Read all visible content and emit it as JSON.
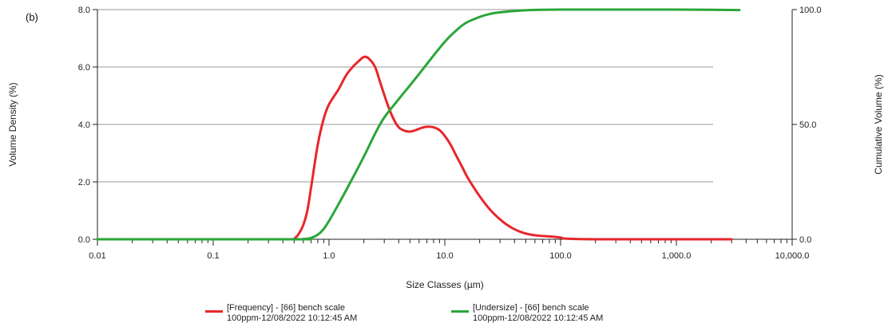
{
  "chart_data": {
    "type": "line",
    "panel_label": "(b)",
    "title": "",
    "xlabel": "Size Classes (µm)",
    "ylabel_left": "Volume Density (%)",
    "ylabel_right": "Cumulative Volume (%)",
    "x_scale": "log",
    "xlim": [
      0.01,
      10000
    ],
    "ylim_left": [
      0,
      8
    ],
    "ylim_right": [
      0,
      100
    ],
    "x_tick_labels": [
      "0.01",
      "0.1",
      "1.0",
      "10.0",
      "100.0",
      "1,000.0",
      "10,000.0"
    ],
    "x_tick_values": [
      0.01,
      0.1,
      1,
      10,
      100,
      1000,
      10000
    ],
    "y_left_tick_labels": [
      "0.0",
      "2.0",
      "4.0",
      "6.0",
      "8.0"
    ],
    "y_left_tick_values": [
      0,
      2,
      4,
      6,
      8
    ],
    "y_right_tick_labels": [
      "0.0",
      "50.0",
      "100.0"
    ],
    "y_right_tick_values": [
      0,
      50,
      100
    ],
    "grid": "horizontal",
    "legend_position": "bottom",
    "series": [
      {
        "name": "[Frequency] - [66] bench scale 100ppm-12/08/2022 10:12:45 AM",
        "legend_line1": "[Frequency] - [66] bench scale",
        "legend_line2": "100ppm-12/08/2022 10:12:45 AM",
        "axis": "left",
        "color": "#e8262a",
        "x": [
          0.01,
          0.45,
          0.5,
          0.55,
          0.6,
          0.65,
          0.7,
          0.8,
          0.9,
          1.0,
          1.2,
          1.4,
          1.6,
          1.8,
          2.0,
          2.2,
          2.5,
          2.8,
          3.2,
          3.6,
          4.0,
          4.5,
          5.0,
          5.6,
          6.3,
          7.1,
          8.0,
          9.0,
          10.0,
          11.2,
          12.6,
          14.2,
          16.0,
          20.0,
          25.0,
          32.0,
          40.0,
          50.0,
          63.0,
          80.0,
          100.0,
          113.0,
          200.0,
          1000.0,
          3000.0
        ],
        "y": [
          0.0,
          0.0,
          0.02,
          0.2,
          0.5,
          1.0,
          1.8,
          3.3,
          4.2,
          4.7,
          5.2,
          5.7,
          6.0,
          6.2,
          6.35,
          6.3,
          6.0,
          5.4,
          4.7,
          4.2,
          3.9,
          3.78,
          3.75,
          3.8,
          3.88,
          3.92,
          3.9,
          3.8,
          3.6,
          3.3,
          2.9,
          2.5,
          2.1,
          1.5,
          1.0,
          0.6,
          0.35,
          0.2,
          0.13,
          0.1,
          0.06,
          0.02,
          0.0,
          0.0,
          0.0
        ]
      },
      {
        "name": "[Undersize] - [66] bench scale 100ppm-12/08/2022 10:12:45 AM",
        "legend_line1": "[Undersize] - [66] bench scale",
        "legend_line2": "100ppm-12/08/2022 10:12:45 AM",
        "axis": "right",
        "color": "#2aa63a",
        "x": [
          0.01,
          0.5,
          0.6,
          0.7,
          0.8,
          0.9,
          1.0,
          1.2,
          1.5,
          2.0,
          2.5,
          3.0,
          4.0,
          5.0,
          6.0,
          8.0,
          10.0,
          12.0,
          15.0,
          20.0,
          25.0,
          30.0,
          40.0,
          50.0,
          70.0,
          100.0,
          200.0,
          1000.0,
          3500.0
        ],
        "y": [
          0.0,
          0.0,
          0.1,
          0.6,
          2.0,
          4.5,
          8.0,
          15.0,
          24.0,
          36.0,
          46.0,
          53.0,
          61.0,
          67.0,
          72.0,
          80.0,
          86.0,
          90.0,
          94.0,
          96.8,
          98.2,
          98.8,
          99.4,
          99.7,
          99.9,
          100.0,
          100.0,
          100.0,
          99.8
        ]
      }
    ]
  }
}
